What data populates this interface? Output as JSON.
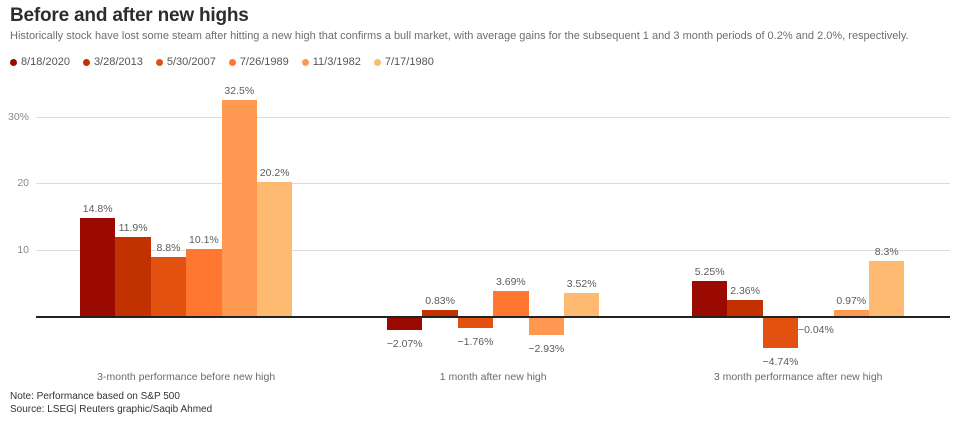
{
  "header": {
    "title": "Before and after new highs",
    "subtitle": "Historically stock have lost some steam after hitting a new high that confirms a bull market, with average gains for the subsequent 1 and 3 month periods of 0.2% and 2.0%, respectively."
  },
  "chart_data": {
    "type": "bar",
    "categories": [
      "3-month performance before new high",
      "1 month after new high",
      "3 month performance after new high"
    ],
    "series": [
      {
        "name": "8/18/2020",
        "color": "#9b0a00",
        "values": [
          14.8,
          -2.07,
          5.25
        ],
        "labels": [
          "14.8%",
          "−2.07%",
          "5.25%"
        ]
      },
      {
        "name": "3/28/2013",
        "color": "#c23200",
        "values": [
          11.9,
          0.83,
          2.36
        ],
        "labels": [
          "11.9%",
          "0.83%",
          "2.36%"
        ]
      },
      {
        "name": "5/30/2007",
        "color": "#e35110",
        "values": [
          8.8,
          -1.76,
          -4.74
        ],
        "labels": [
          "8.8%",
          "−1.76%",
          "−4.74%"
        ]
      },
      {
        "name": "7/26/1989",
        "color": "#ff7731",
        "values": [
          10.1,
          3.69,
          -0.04
        ],
        "labels": [
          "10.1%",
          "3.69%",
          "−0.04%"
        ]
      },
      {
        "name": "11/3/1982",
        "color": "#ff9951",
        "values": [
          32.5,
          -2.93,
          0.97
        ],
        "labels": [
          "32.5%",
          "−2.93%",
          "0.97%"
        ]
      },
      {
        "name": "7/17/1980",
        "color": "#ffba72",
        "values": [
          20.2,
          3.52,
          8.3
        ],
        "labels": [
          "20.2%",
          "3.52%",
          "8.3%"
        ]
      }
    ],
    "yticks": [
      {
        "value": 10,
        "label": "10"
      },
      {
        "value": 20,
        "label": "20"
      },
      {
        "value": 30,
        "label": "30%"
      }
    ],
    "ylim": [
      -6,
      34
    ],
    "grid": true,
    "legend_position": "top",
    "axis_color": "#222222",
    "gridline_color": "#dcdcdc"
  },
  "footer": {
    "note": "Note: Performance based on S&P 500",
    "source": "Source: LSEG| Reuters graphic/Saqib Ahmed"
  }
}
